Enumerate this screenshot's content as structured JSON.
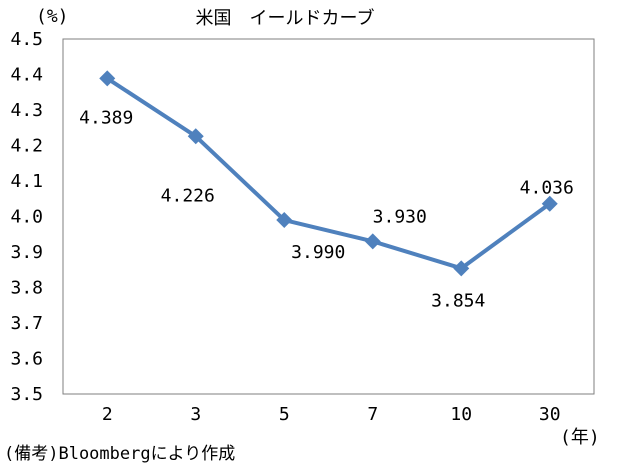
{
  "chart_data": {
    "type": "line",
    "title": "米国　イールドカーブ",
    "ylabel": "(%)",
    "xlabel": "(年)",
    "source_note": "(備考)Bloombergにより作成",
    "categories": [
      "2",
      "3",
      "5",
      "7",
      "10",
      "30"
    ],
    "y_ticks": [
      "4.5",
      "4.4",
      "4.3",
      "4.2",
      "4.1",
      "4.0",
      "3.9",
      "3.8",
      "3.7",
      "3.6",
      "3.5"
    ],
    "ylim": [
      3.5,
      4.5
    ],
    "series": [
      {
        "values": [
          4.389,
          4.226,
          3.99,
          3.93,
          3.854,
          4.036
        ],
        "labels": [
          "4.389",
          "4.226",
          "3.990",
          "3.930",
          "3.854",
          "4.036"
        ],
        "color": "#4f81bd"
      }
    ],
    "grid": false,
    "legend": "none"
  }
}
